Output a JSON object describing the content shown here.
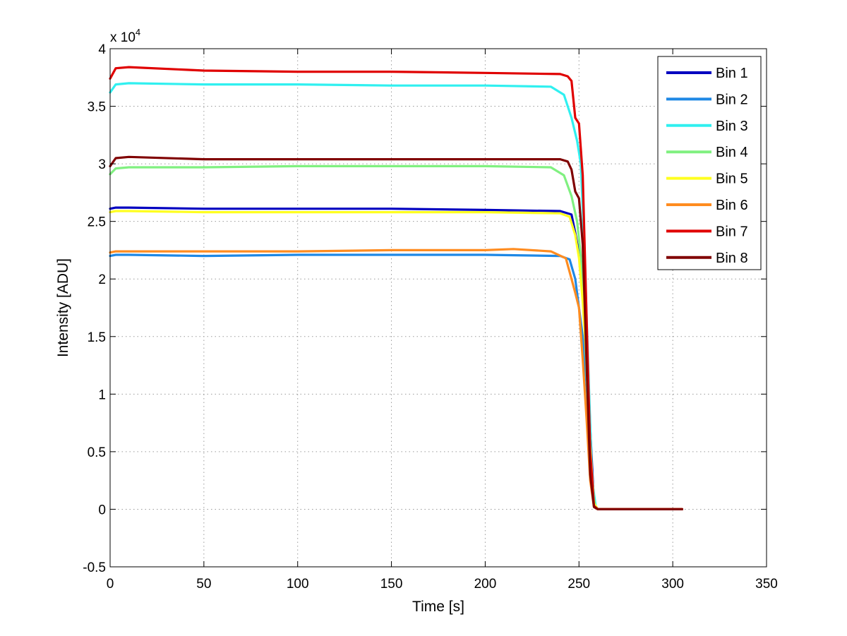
{
  "chart_data": {
    "type": "line",
    "title": "",
    "xlabel": "Time [s]",
    "ylabel": "Intensity [ADU]",
    "y_multiplier_label": "x 10",
    "y_multiplier_exponent": "4",
    "xlim": [
      0,
      350
    ],
    "ylim": [
      -0.5,
      4
    ],
    "grid": true,
    "legend_position": "top-right",
    "x_ticks": [
      "0",
      "50",
      "100",
      "150",
      "200",
      "250",
      "300",
      "350"
    ],
    "y_ticks": [
      "-0.5",
      "0",
      "0.5",
      "1",
      "1.5",
      "2",
      "2.5",
      "3",
      "3.5",
      "4"
    ],
    "series": [
      {
        "name": "Bin 1",
        "color": "#0000c0",
        "x": [
          0,
          3,
          10,
          50,
          100,
          150,
          200,
          240,
          246,
          248,
          250,
          252,
          254,
          256,
          258,
          260,
          300,
          305
        ],
        "y": [
          2.61,
          2.62,
          2.62,
          2.61,
          2.61,
          2.61,
          2.6,
          2.59,
          2.56,
          2.4,
          2.22,
          2.1,
          1.6,
          0.7,
          0.05,
          0,
          0,
          0
        ]
      },
      {
        "name": "Bin 2",
        "color": "#1e88e5",
        "x": [
          0,
          3,
          10,
          50,
          100,
          150,
          200,
          240,
          245,
          248,
          250,
          252,
          254,
          256,
          258,
          260,
          300,
          305
        ],
        "y": [
          2.2,
          2.21,
          2.21,
          2.2,
          2.21,
          2.21,
          2.21,
          2.2,
          2.17,
          2.0,
          1.75,
          1.5,
          1.1,
          0.5,
          0.05,
          0,
          0,
          0
        ]
      },
      {
        "name": "Bin 3",
        "color": "#30f0f0",
        "x": [
          0,
          3,
          10,
          50,
          100,
          150,
          200,
          235,
          242,
          246,
          249,
          251,
          253,
          255,
          257,
          259,
          260,
          300,
          305
        ],
        "y": [
          3.62,
          3.69,
          3.7,
          3.69,
          3.69,
          3.68,
          3.68,
          3.67,
          3.6,
          3.4,
          3.2,
          3.0,
          2.2,
          1.2,
          0.25,
          0.02,
          0,
          0,
          0
        ]
      },
      {
        "name": "Bin 4",
        "color": "#80f080",
        "x": [
          0,
          3,
          10,
          50,
          100,
          150,
          200,
          235,
          242,
          246,
          249,
          251,
          253,
          255,
          257,
          259,
          260,
          300,
          305
        ],
        "y": [
          2.91,
          2.96,
          2.97,
          2.97,
          2.98,
          2.98,
          2.98,
          2.97,
          2.9,
          2.72,
          2.5,
          2.2,
          1.6,
          0.8,
          0.15,
          0.01,
          0,
          0,
          0
        ]
      },
      {
        "name": "Bin 5",
        "color": "#ffff20",
        "x": [
          0,
          3,
          10,
          50,
          100,
          150,
          200,
          240,
          245,
          248,
          250,
          252,
          254,
          256,
          258,
          260,
          300,
          305
        ],
        "y": [
          2.58,
          2.59,
          2.59,
          2.58,
          2.58,
          2.58,
          2.58,
          2.57,
          2.54,
          2.38,
          2.18,
          1.8,
          1.3,
          0.55,
          0.05,
          0,
          0,
          0
        ]
      },
      {
        "name": "Bin 6",
        "color": "#ff8c20",
        "x": [
          0,
          3,
          10,
          50,
          100,
          150,
          200,
          215,
          235,
          243,
          246,
          248,
          250,
          252,
          254,
          256,
          258,
          260,
          300,
          305
        ],
        "y": [
          2.23,
          2.24,
          2.24,
          2.24,
          2.24,
          2.25,
          2.25,
          2.26,
          2.24,
          2.18,
          2.0,
          1.88,
          1.75,
          1.3,
          0.8,
          0.25,
          0.02,
          0,
          0,
          0
        ]
      },
      {
        "name": "Bin 7",
        "color": "#e00000",
        "x": [
          0,
          3,
          10,
          50,
          100,
          150,
          200,
          240,
          244,
          246,
          248,
          250,
          252,
          254,
          256,
          258,
          260,
          300,
          305
        ],
        "y": [
          3.74,
          3.83,
          3.84,
          3.81,
          3.8,
          3.8,
          3.79,
          3.78,
          3.76,
          3.72,
          3.4,
          3.35,
          2.9,
          1.7,
          0.5,
          0.03,
          0,
          0,
          0
        ]
      },
      {
        "name": "Bin 8",
        "color": "#800000",
        "x": [
          0,
          3,
          10,
          50,
          100,
          150,
          200,
          240,
          244,
          246,
          248,
          250,
          252,
          254,
          256,
          258,
          260,
          300,
          305
        ],
        "y": [
          2.98,
          3.05,
          3.06,
          3.04,
          3.04,
          3.04,
          3.04,
          3.04,
          3.02,
          2.95,
          2.76,
          2.7,
          2.3,
          1.3,
          0.3,
          0.02,
          0,
          0,
          0
        ]
      }
    ]
  }
}
